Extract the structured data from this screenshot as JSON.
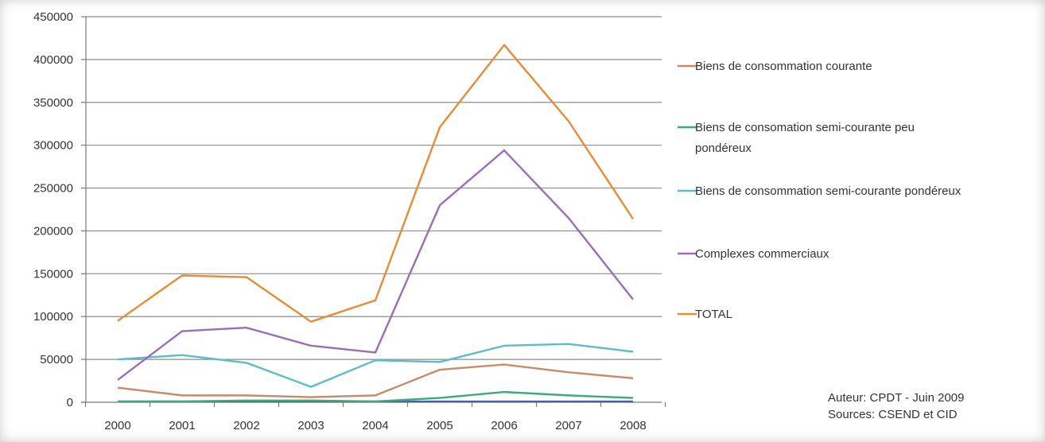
{
  "chart_data": {
    "type": "line",
    "title": "",
    "xlabel": "",
    "ylabel": "",
    "ylim": [
      0,
      450000
    ],
    "yticks": [
      0,
      50000,
      100000,
      150000,
      200000,
      250000,
      300000,
      350000,
      400000,
      450000
    ],
    "ytick_labels": [
      "0",
      "50000",
      "100000",
      "150000",
      "200000",
      "250000",
      "300000",
      "350000",
      "400000",
      "450000"
    ],
    "categories": [
      "2000",
      "2001",
      "2002",
      "2003",
      "2004",
      "2005",
      "2006",
      "2007",
      "2008"
    ],
    "grid": "horizontal",
    "legend_position": "right",
    "series": [
      {
        "name": "Biens de consommation courante",
        "legend_lines": [
          "Biens de consommation courante"
        ],
        "color": "#c98a6a",
        "values": [
          17000,
          8000,
          8000,
          6000,
          8000,
          38000,
          44000,
          35000,
          28000
        ]
      },
      {
        "name": "Biens de consomation semi-courante peu pondéreux",
        "legend_lines": [
          "Biens de consomation semi-courante peu",
          "pondéreux"
        ],
        "color": "#3daa7d",
        "values": [
          1000,
          1000,
          2000,
          2000,
          1000,
          5000,
          12000,
          8000,
          5000
        ]
      },
      {
        "name": "Biens de consommation semi-courante pondéreux",
        "legend_lines": [
          "Biens de consommation semi-courante pondéreux"
        ],
        "color": "#5bbccc",
        "values": [
          50000,
          55000,
          46000,
          18000,
          49000,
          47000,
          66000,
          68000,
          59000
        ]
      },
      {
        "name": "Complexes commerciaux",
        "legend_lines": [
          "Complexes commerciaux"
        ],
        "color": "#9b6cb8",
        "values": [
          26000,
          83000,
          87000,
          66000,
          58000,
          230000,
          294000,
          215000,
          120000
        ]
      },
      {
        "name": "TOTAL",
        "legend_lines": [
          "TOTAL"
        ],
        "color": "#e98a36",
        "values": [
          95000,
          148000,
          146000,
          94000,
          119000,
          321000,
          417000,
          328000,
          214000
        ]
      }
    ],
    "extra_flat_line": {
      "color": "#4a5fa8",
      "values": [
        0,
        0,
        0,
        0,
        0,
        0,
        0,
        0,
        0
      ]
    }
  },
  "credits": {
    "author": "Auteur: CPDT - Juin 2009",
    "sources": "Sources: CSEND et CID"
  }
}
